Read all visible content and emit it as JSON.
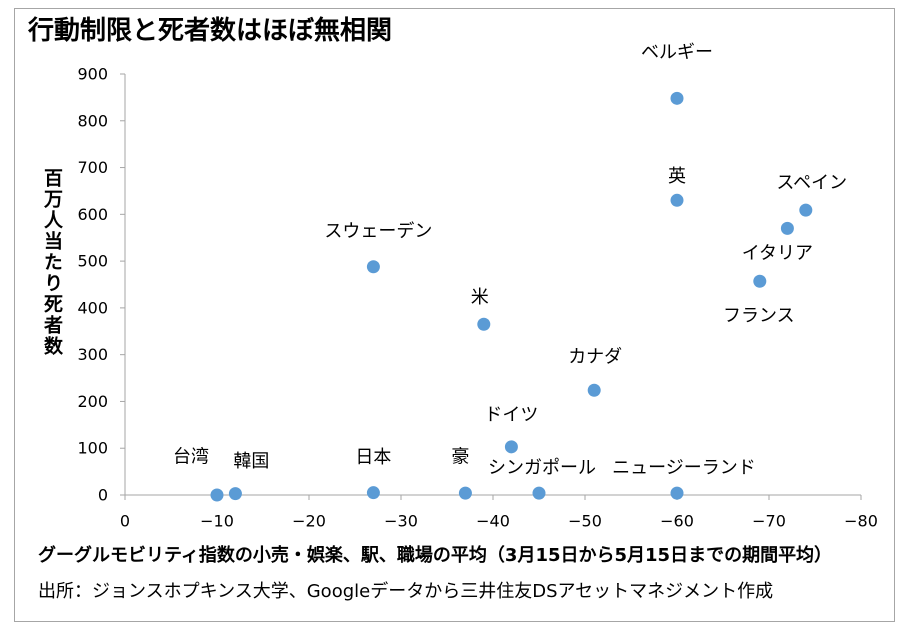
{
  "source": "出所：ジョンスホプキンス大学、Googleデータから三井住友DSアセットマネジメント作成",
  "colors": {
    "marker": "#5b9bd5",
    "axis": "#a6a6a6",
    "frame": "#a6a6a6",
    "text": "#000000"
  },
  "chart_data": {
    "type": "scatter",
    "title": "行動制限と死者数はほぼ無相関",
    "xlabel": "グーグルモビリティ指数の小売・娯楽、駅、職場の平均（3月15日から5月15日までの期間平均）",
    "ylabel": "百万人当たり死者数",
    "xlim": [
      0,
      -80
    ],
    "ylim": [
      0,
      900
    ],
    "grid": false,
    "x_ticks": [
      {
        "value": 0,
        "label": "0"
      },
      {
        "value": -10,
        "label": "−10"
      },
      {
        "value": -20,
        "label": "−20"
      },
      {
        "value": -30,
        "label": "−30"
      },
      {
        "value": -40,
        "label": "−40"
      },
      {
        "value": -50,
        "label": "−50"
      },
      {
        "value": -60,
        "label": "−60"
      },
      {
        "value": -70,
        "label": "−70"
      },
      {
        "value": -80,
        "label": "−80"
      }
    ],
    "y_ticks": [
      {
        "value": 0,
        "label": "0"
      },
      {
        "value": 100,
        "label": "100"
      },
      {
        "value": 200,
        "label": "200"
      },
      {
        "value": 300,
        "label": "300"
      },
      {
        "value": 400,
        "label": "400"
      },
      {
        "value": 500,
        "label": "500"
      },
      {
        "value": 600,
        "label": "600"
      },
      {
        "value": 700,
        "label": "700"
      },
      {
        "value": 800,
        "label": "800"
      },
      {
        "value": 900,
        "label": "900"
      }
    ],
    "points": [
      {
        "name": "ベルギー",
        "x": -60,
        "y": 848
      },
      {
        "name": "英",
        "x": -60,
        "y": 630
      },
      {
        "name": "スペイン",
        "x": -74,
        "y": 609
      },
      {
        "name": "イタリア",
        "x": -72,
        "y": 570
      },
      {
        "name": "フランス",
        "x": -69,
        "y": 457
      },
      {
        "name": "スウェーデン",
        "x": -27,
        "y": 488
      },
      {
        "name": "米",
        "x": -39,
        "y": 365
      },
      {
        "name": "カナダ",
        "x": -51,
        "y": 224
      },
      {
        "name": "ドイツ",
        "x": -42,
        "y": 103
      },
      {
        "name": "台湾",
        "x": -10,
        "y": 0
      },
      {
        "name": "韓国",
        "x": -12,
        "y": 3
      },
      {
        "name": "日本",
        "x": -27,
        "y": 5
      },
      {
        "name": "豪",
        "x": -37,
        "y": 4
      },
      {
        "name": "シンガポール",
        "x": -45,
        "y": 4
      },
      {
        "name": "ニュージーランド",
        "x": -60,
        "y": 4
      }
    ]
  }
}
